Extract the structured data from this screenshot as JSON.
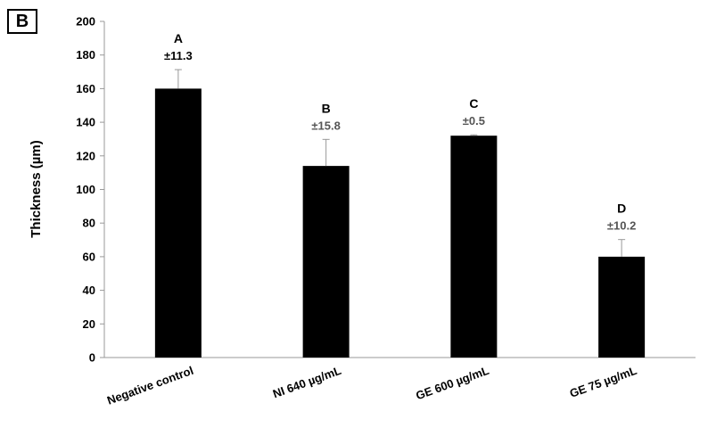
{
  "panel_label": "B",
  "chart_data": {
    "type": "bar",
    "title": "",
    "xlabel": "",
    "ylabel": "Thickness (µm)",
    "ylim": [
      0,
      200
    ],
    "yticks": [
      0,
      20,
      40,
      60,
      80,
      100,
      120,
      140,
      160,
      180,
      200
    ],
    "categories": [
      "Negative control",
      "NI 640 µg/mL",
      "GE 600 µg/mL",
      "GE 75 µg/mL"
    ],
    "values": [
      160,
      114,
      132,
      60
    ],
    "errors": [
      11.3,
      15.8,
      0.5,
      10.2
    ],
    "letters": [
      "A",
      "B",
      "C",
      "D"
    ],
    "sd_labels": [
      "±11.3",
      "±15.8",
      "±0.5",
      "±10.2"
    ],
    "sd_label_colors": [
      "#000000",
      "#555555",
      "#555555",
      "#555555"
    ],
    "bar_color": "#000000",
    "grid": false,
    "legend": "none"
  }
}
